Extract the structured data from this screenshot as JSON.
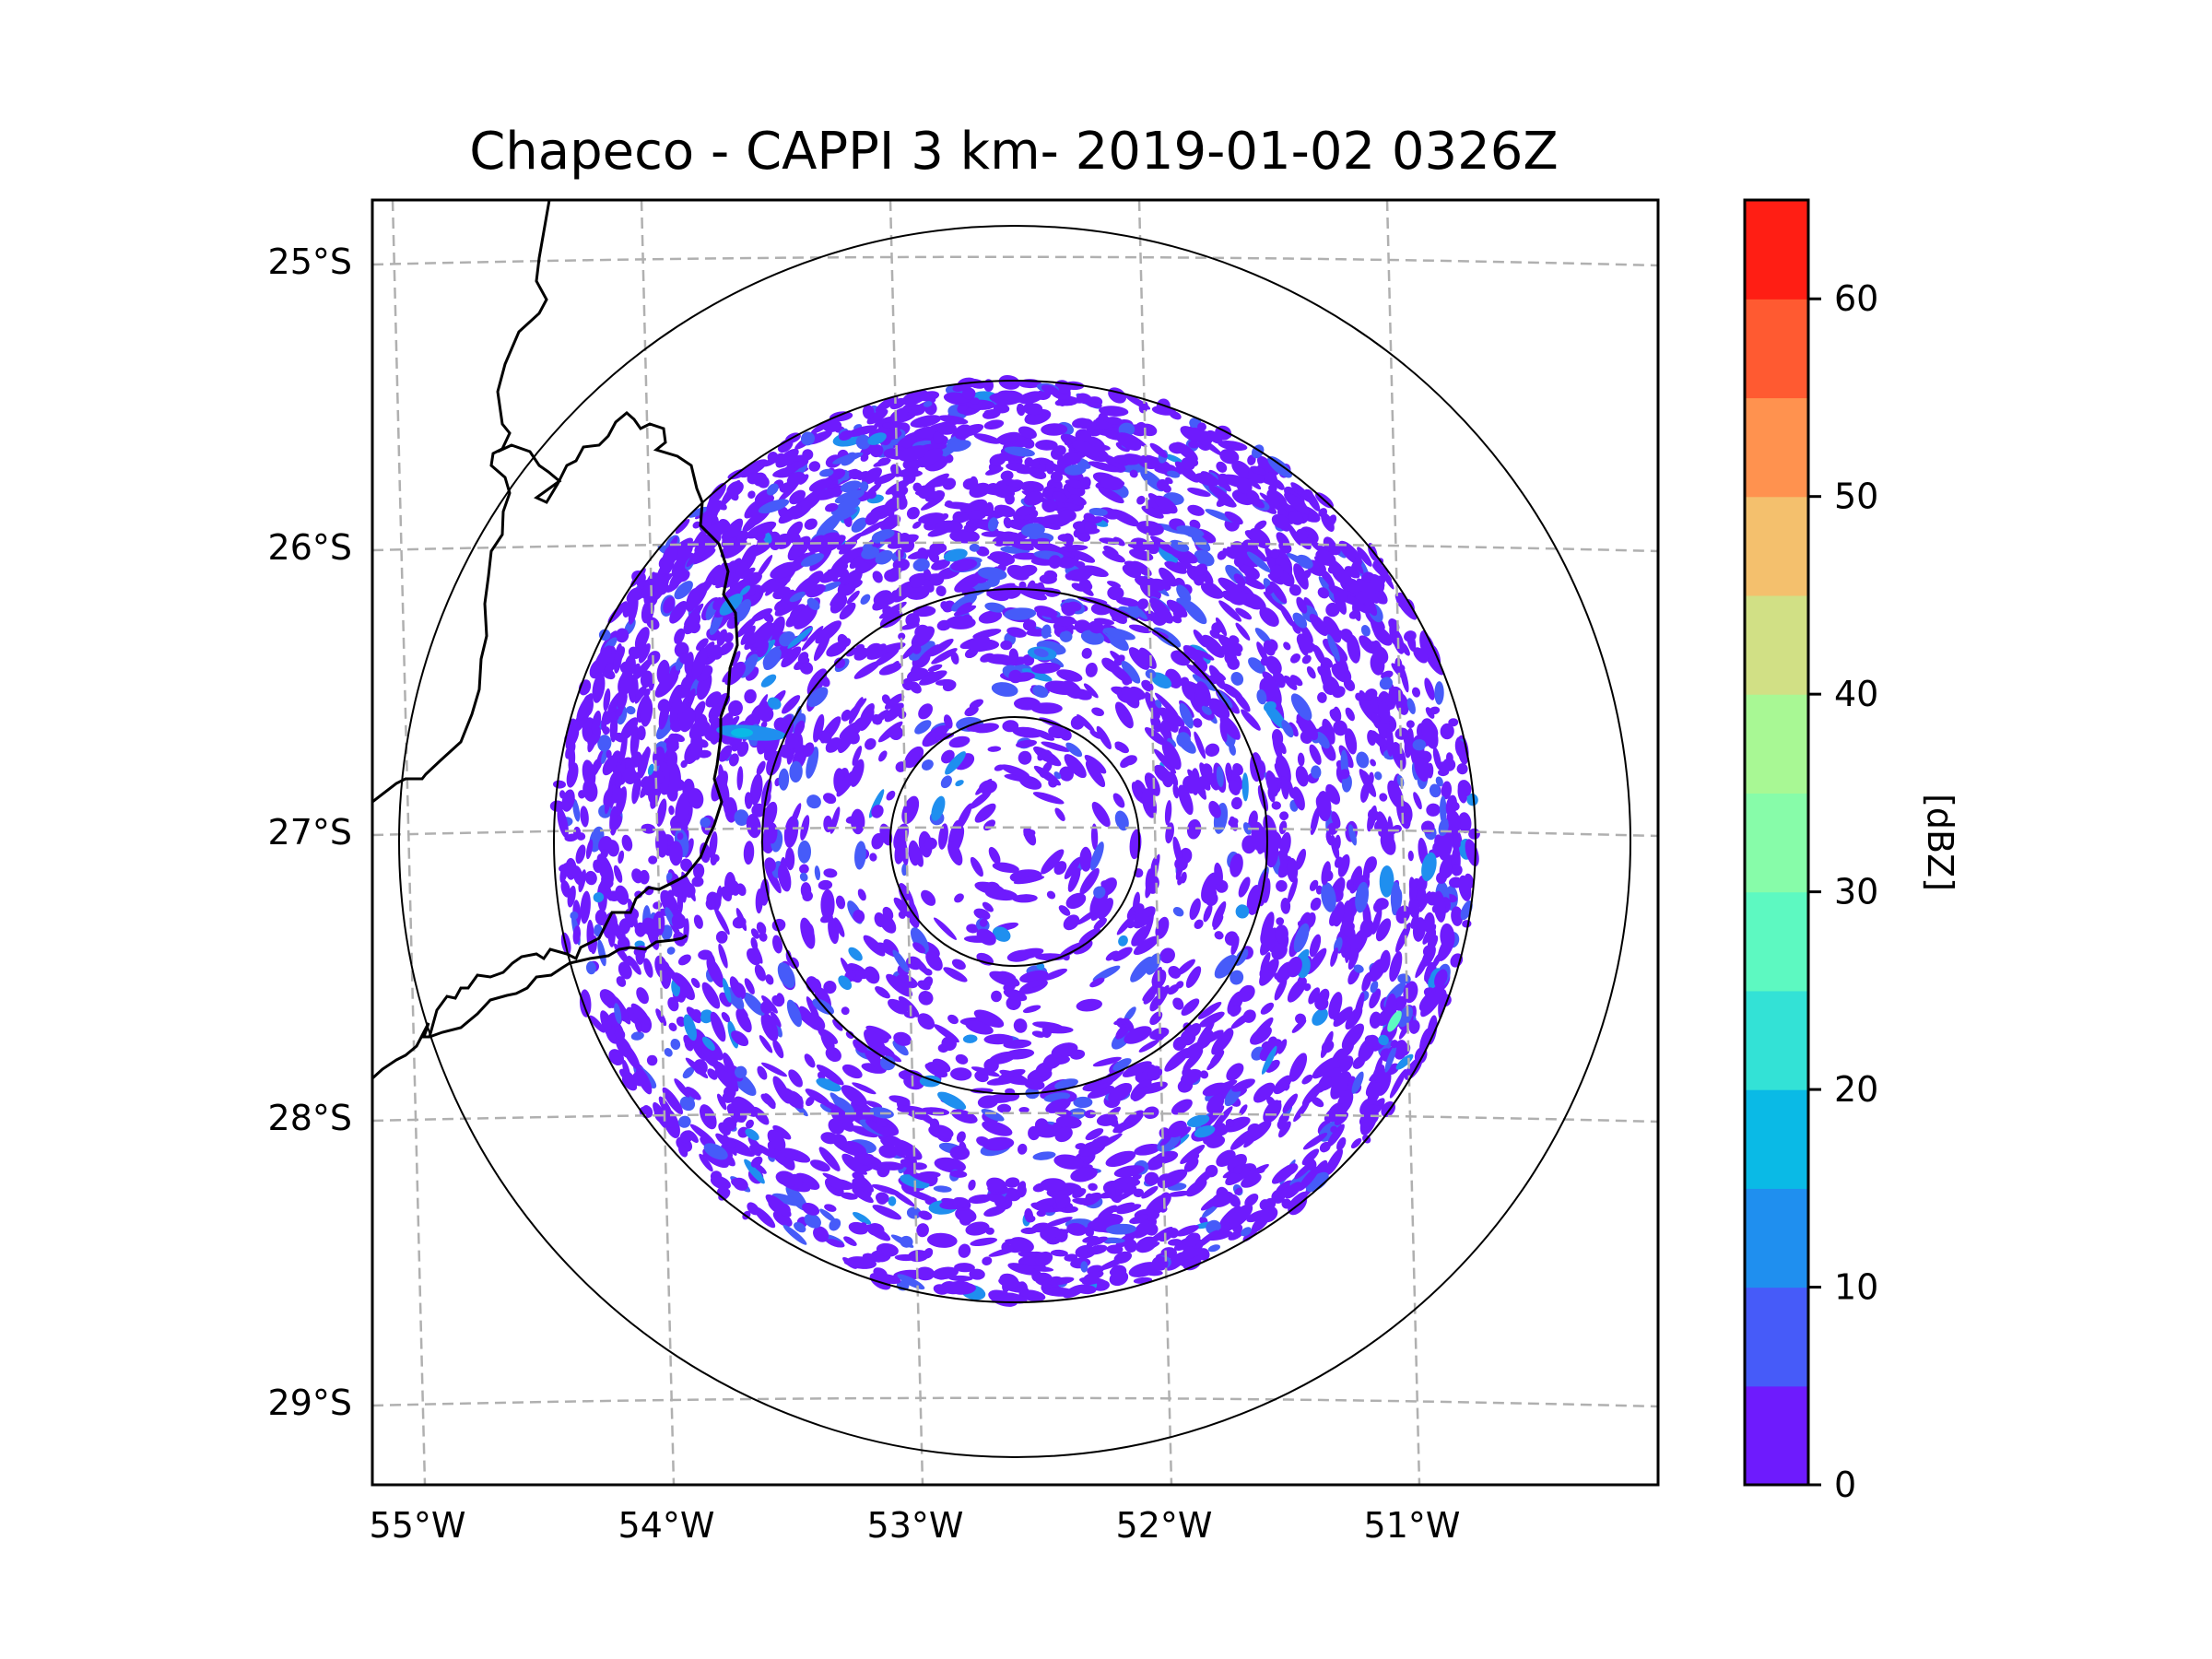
{
  "title": "Chapeco - CAPPI 3 km- 2019-01-02 0326Z",
  "chart_data": {
    "type": "heatmap",
    "title": "Chapeco - CAPPI 3 km- 2019-01-02 0326Z",
    "product": "CAPPI",
    "height_km": 3,
    "radar": "Chapeco",
    "datetime": "2019-01-02 0326Z",
    "xlabel": "",
    "ylabel": "",
    "xlim_deg_lon": [
      -55.2,
      -50.1
    ],
    "ylim_deg_lat": [
      -29.3,
      -24.8
    ],
    "x_ticks": [
      {
        "value": -55,
        "label": "55°W"
      },
      {
        "value": -54,
        "label": "54°W"
      },
      {
        "value": -53,
        "label": "53°W"
      },
      {
        "value": -52,
        "label": "52°W"
      },
      {
        "value": -51,
        "label": "51°W"
      }
    ],
    "y_ticks": [
      {
        "value": -25,
        "label": "25°S"
      },
      {
        "value": -26,
        "label": "26°S"
      },
      {
        "value": -27,
        "label": "27°S"
      },
      {
        "value": -28,
        "label": "28°S"
      },
      {
        "value": -29,
        "label": "29°S"
      }
    ],
    "grid": true,
    "radar_center": {
      "lon": -52.6,
      "lat": -27.03
    },
    "range_rings_km": [
      50,
      100,
      180,
      240
    ],
    "data_max_range_km": 180,
    "colorbar": {
      "label": "[dBZ]",
      "position": "right",
      "min": 0,
      "max": 65,
      "step": 5,
      "ticks": [
        0,
        10,
        20,
        30,
        40,
        50,
        60
      ],
      "colors": [
        "#6e1bfd",
        "#465bf9",
        "#1f8fef",
        "#0abae6",
        "#33e2d6",
        "#5df9c1",
        "#87fca9",
        "#a8f894",
        "#d1e085",
        "#f4c06d",
        "#ff924f",
        "#ff5a31",
        "#ff1e14"
      ]
    },
    "observations": [
      {
        "region": "most of scan area",
        "value_range_dbz": [
          0,
          10
        ],
        "description": "scattered weak echoes / clutter"
      },
      {
        "region": "west near border (~54°W, 26.6°S)",
        "value_range_dbz": [
          10,
          20
        ],
        "description": "small band of moderate echoes"
      },
      {
        "region": "east (~51°W, 27.7°S)",
        "value_range_dbz": [
          20,
          35
        ],
        "description": "isolated small cell"
      },
      {
        "region": "near radar (< 50 km)",
        "value_range_dbz": [
          0,
          5
        ],
        "description": "sparse echoes"
      }
    ]
  }
}
